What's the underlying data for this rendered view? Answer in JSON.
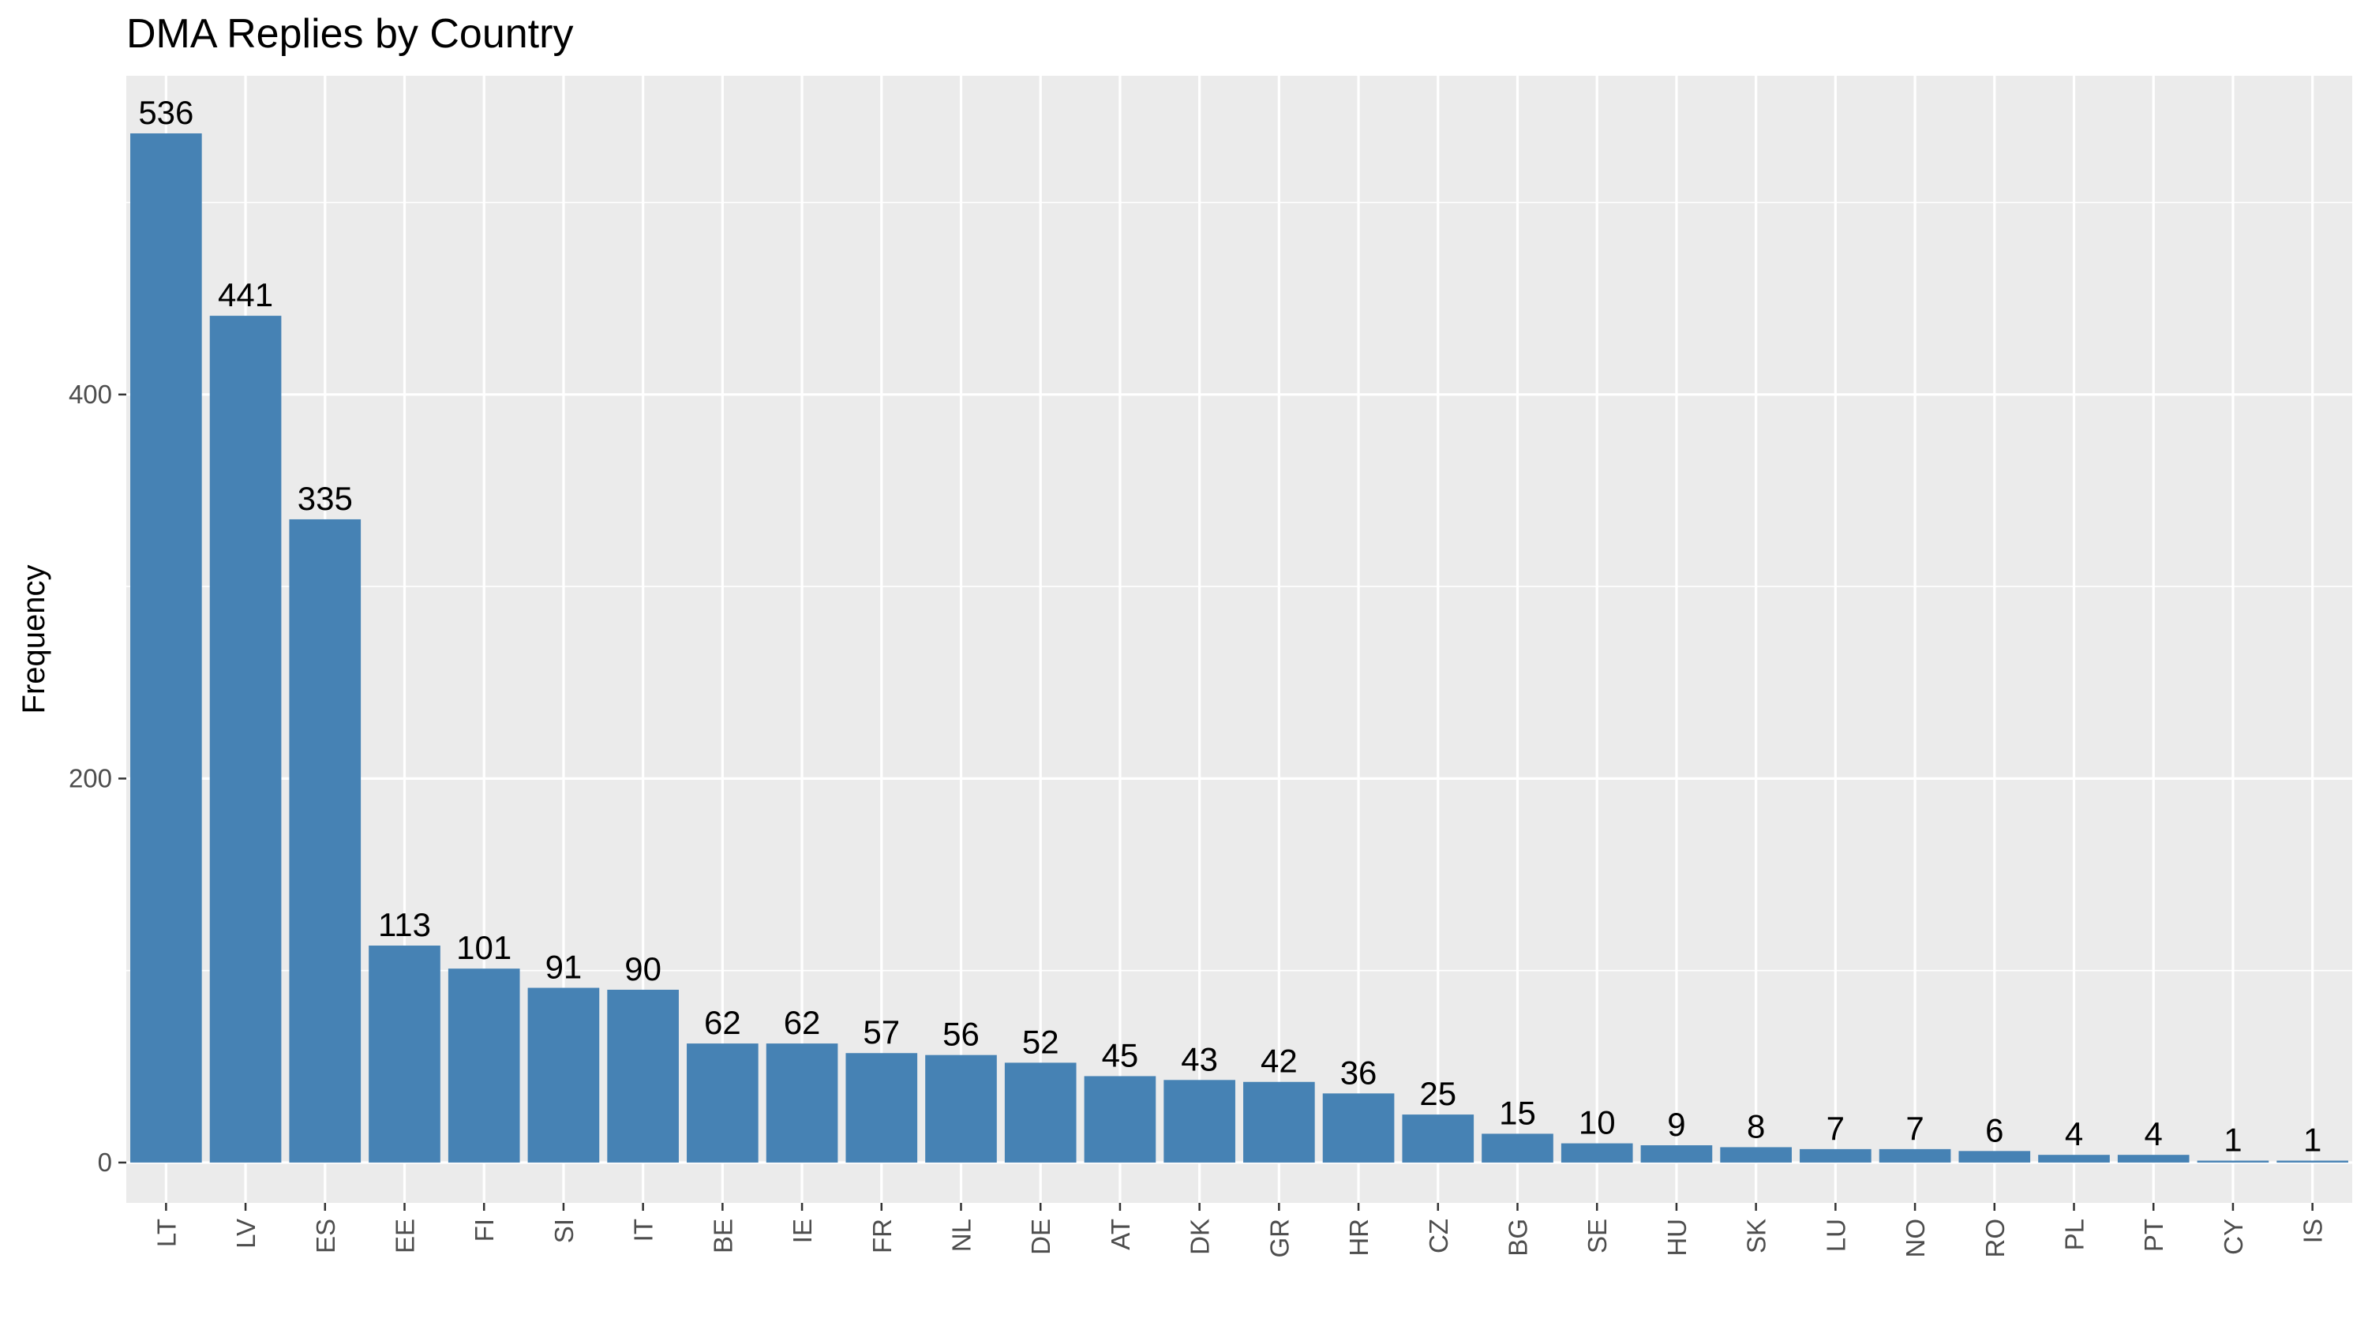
{
  "chart_data": {
    "type": "bar",
    "title": "DMA Replies by Country",
    "xlabel": "",
    "ylabel": "Frequency",
    "categories": [
      "LT",
      "LV",
      "ES",
      "EE",
      "FI",
      "SI",
      "IT",
      "BE",
      "IE",
      "FR",
      "NL",
      "DE",
      "AT",
      "DK",
      "GR",
      "HR",
      "CZ",
      "BG",
      "SE",
      "HU",
      "SK",
      "LU",
      "NO",
      "RO",
      "PL",
      "PT",
      "CY",
      "IS"
    ],
    "values": [
      536,
      441,
      335,
      113,
      101,
      91,
      90,
      62,
      62,
      57,
      56,
      52,
      45,
      43,
      42,
      36,
      25,
      15,
      10,
      9,
      8,
      7,
      7,
      6,
      4,
      4,
      1,
      1
    ],
    "data_labels": [
      "536",
      "441",
      "335",
      "113",
      "101",
      "91",
      "90",
      "62",
      "62",
      "57",
      "56",
      "52",
      "45",
      "43",
      "42",
      "36",
      "25",
      "15",
      "10",
      "9",
      "8",
      "7",
      "7",
      "6",
      "4",
      "4",
      "1",
      "1"
    ],
    "y_ticks": [
      0,
      200,
      400
    ],
    "y_tick_labels": [
      "0",
      "200",
      "400"
    ],
    "ylim": [
      -21,
      566
    ],
    "grid": true,
    "legend": "none",
    "colors": {
      "bar": "#4682B4",
      "panel_background": "#EBEBEB",
      "gridline": "#FFFFFF",
      "text": "#000000",
      "tick_text": "#4D4D4D"
    }
  }
}
